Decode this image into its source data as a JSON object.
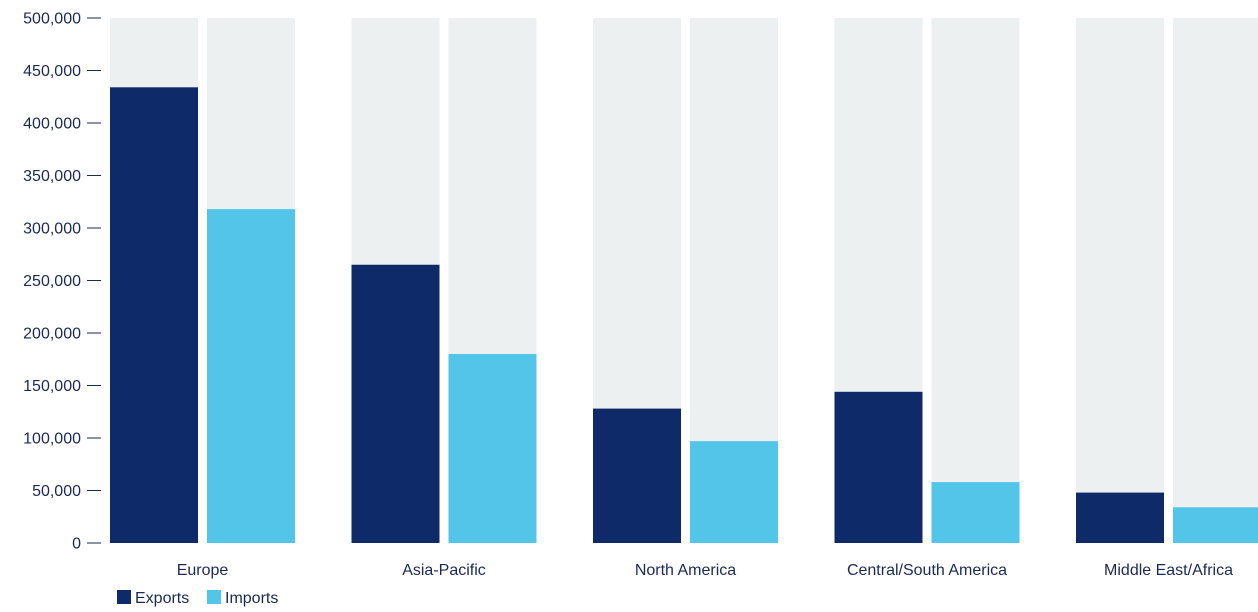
{
  "colors": {
    "exports": "#0f2a69",
    "imports": "#52c5e8",
    "track": "#edf0f1",
    "text": "#1b2a55",
    "tick": "#1b2a55"
  },
  "chart_data": {
    "type": "bar",
    "title": "",
    "xlabel": "",
    "ylabel": "",
    "ylim": [
      0,
      500000
    ],
    "yticks": [
      0,
      50000,
      100000,
      150000,
      200000,
      250000,
      300000,
      350000,
      400000,
      450000,
      500000
    ],
    "ytick_labels": [
      "0",
      "50,000",
      "100,000",
      "150,000",
      "200,000",
      "250,000",
      "300,000",
      "350,000",
      "400,000",
      "450,000",
      "500,000"
    ],
    "categories": [
      "Europe",
      "Asia-Pacific",
      "North America",
      "Central/South America",
      "Middle East/Africa"
    ],
    "series": [
      {
        "name": "Exports",
        "values": [
          434000,
          265000,
          128000,
          144000,
          48000
        ]
      },
      {
        "name": "Imports",
        "values": [
          318000,
          180000,
          97000,
          58000,
          34000
        ]
      }
    ],
    "background_track": true,
    "grid": false,
    "legend_position": "bottom-left"
  }
}
